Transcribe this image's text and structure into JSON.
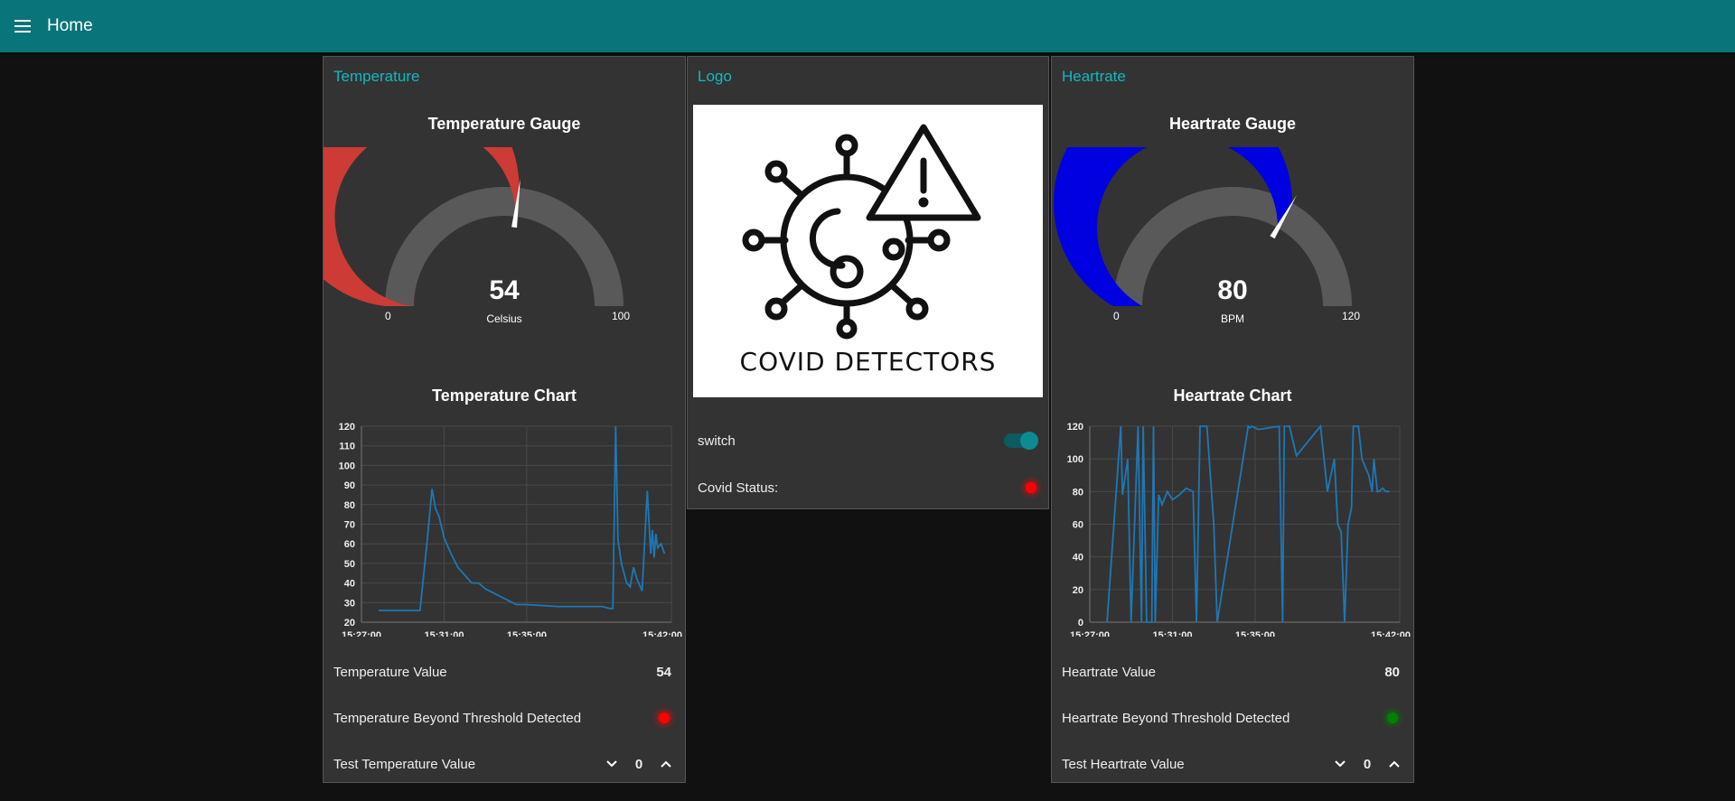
{
  "header": {
    "title": "Home"
  },
  "temperature": {
    "group_title": "Temperature",
    "gauge": {
      "title": "Temperature Gauge",
      "value": 54,
      "display_value": "54",
      "unit": "Celsius",
      "min": 0,
      "max": 100,
      "min_label": "0",
      "max_label": "100",
      "fill_color": "#cc3b36",
      "track_color": "#595959"
    },
    "chart_title": "Temperature Chart",
    "value_label": "Temperature Value",
    "value": "54",
    "threshold_label": "Temperature Beyond Threshold Detected",
    "threshold_led": "#ff0000",
    "test_label": "Test Temperature Value",
    "test_value": "0"
  },
  "logo": {
    "group_title": "Logo",
    "logo_text": "COVID DETECTORS",
    "switch_label": "switch",
    "switch_on": true,
    "status_label": "Covid Status:",
    "status_led": "#ff0000"
  },
  "heartrate": {
    "group_title": "Heartrate",
    "gauge": {
      "title": "Heartrate Gauge",
      "value": 80,
      "display_value": "80",
      "unit": "BPM",
      "min": 0,
      "max": 120,
      "min_label": "0",
      "max_label": "120",
      "fill_color": "#0000e0",
      "track_color": "#595959"
    },
    "chart_title": "Heartrate Chart",
    "value_label": "Heartrate Value",
    "value": "80",
    "threshold_label": "Heartrate Beyond Threshold Detected",
    "threshold_led": "#008000",
    "test_label": "Test Heartrate Value",
    "test_value": "0"
  },
  "chart_data": [
    {
      "type": "line",
      "title": "Temperature Chart",
      "x_ticks": [
        "15:27:00",
        "15:31:00",
        "15:35:00",
        "15:42:00"
      ],
      "x_range": [
        "15:27:00",
        "15:42:00"
      ],
      "ylim": [
        20,
        120
      ],
      "y_ticks": [
        20,
        30,
        40,
        50,
        60,
        70,
        80,
        90,
        100,
        110,
        120
      ],
      "grid": true,
      "line_color": "#1f77b4",
      "series": [
        {
          "x": [
            "15:27:50",
            "15:29:50",
            "15:30:10",
            "15:30:25",
            "15:30:35",
            "15:30:45",
            "15:31:00",
            "15:31:20",
            "15:31:40",
            "15:32:00",
            "15:32:20",
            "15:32:40",
            "15:33:00",
            "15:34:30",
            "15:35:00",
            "15:36:30",
            "15:37:00",
            "15:38:40",
            "15:39:00",
            "15:39:10",
            "15:39:18",
            "15:39:25",
            "15:39:35",
            "15:39:50",
            "15:40:00",
            "15:40:10",
            "15:40:20",
            "15:40:35",
            "15:40:50",
            "15:41:00",
            "15:41:05",
            "15:41:10",
            "15:41:15",
            "15:41:20",
            "15:41:30",
            "15:41:40"
          ],
          "y": [
            26,
            26,
            60,
            88,
            78,
            74,
            63,
            55,
            48,
            44,
            40,
            40,
            37,
            29,
            29,
            28,
            28,
            28,
            27,
            27,
            120,
            62,
            50,
            40,
            38,
            48,
            42,
            36,
            87,
            55,
            67,
            53,
            65,
            58,
            60,
            55
          ]
        }
      ]
    },
    {
      "type": "line",
      "title": "Heartrate Chart",
      "x_ticks": [
        "15:27:00",
        "15:31:00",
        "15:35:00",
        "15:42:00"
      ],
      "x_range": [
        "15:27:00",
        "15:42:00"
      ],
      "ylim": [
        0,
        120
      ],
      "y_ticks": [
        0,
        20,
        40,
        60,
        80,
        100,
        120
      ],
      "grid": true,
      "line_color": "#1f77b4",
      "series": [
        {
          "x": [
            "15:27:50",
            "15:28:30",
            "15:28:35",
            "15:28:50",
            "15:29:00",
            "15:29:20",
            "15:29:30",
            "15:29:35",
            "15:29:45",
            "15:30:00",
            "15:30:05",
            "15:30:10",
            "15:30:20",
            "15:30:30",
            "15:30:45",
            "15:31:00",
            "15:31:20",
            "15:31:30",
            "15:31:40",
            "15:32:00",
            "15:32:10",
            "15:32:20",
            "15:32:40",
            "15:33:00",
            "15:33:10",
            "15:34:40",
            "15:34:45",
            "15:34:50",
            "15:35:10",
            "15:36:10",
            "15:36:20",
            "15:36:25",
            "15:36:40",
            "15:37:00",
            "15:38:10",
            "15:38:20",
            "15:38:30",
            "15:38:50",
            "15:39:00",
            "15:39:10",
            "15:39:20",
            "15:39:30",
            "15:39:40",
            "15:39:45",
            "15:40:00",
            "15:40:10",
            "15:40:30",
            "15:40:40",
            "15:40:45",
            "15:40:50",
            "15:40:55",
            "15:41:00",
            "15:41:10",
            "15:41:20",
            "15:41:30"
          ],
          "y": [
            0,
            120,
            78,
            100,
            0,
            120,
            0,
            120,
            0,
            0,
            120,
            0,
            78,
            72,
            80,
            75,
            78,
            80,
            82,
            80,
            0,
            120,
            120,
            60,
            0,
            120,
            119,
            120,
            118,
            120,
            0,
            120,
            120,
            102,
            120,
            100,
            80,
            100,
            60,
            55,
            0,
            60,
            70,
            120,
            120,
            100,
            90,
            80,
            100,
            90,
            80,
            80,
            82,
            80,
            80
          ]
        }
      ]
    }
  ]
}
